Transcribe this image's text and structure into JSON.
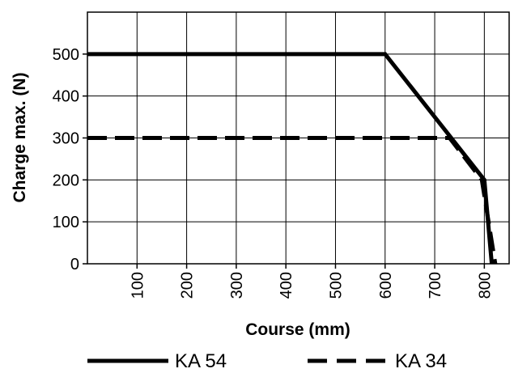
{
  "chart_data": {
    "type": "line",
    "xlabel": "Course (mm)",
    "ylabel": "Charge max. (N)",
    "xlim": [
      0,
      850
    ],
    "ylim": [
      0,
      600
    ],
    "xticks": [
      100,
      200,
      300,
      400,
      500,
      600,
      700,
      800
    ],
    "yticks": [
      0,
      100,
      200,
      300,
      400,
      500
    ],
    "grid": true,
    "legend_position": "bottom",
    "series": [
      {
        "name": "KA 54",
        "style": "solid",
        "color": "#000000",
        "x": [
          0,
          600,
          800,
          815
        ],
        "y": [
          500,
          500,
          200,
          0
        ]
      },
      {
        "name": "KA 34",
        "style": "dashed",
        "color": "#000000",
        "x": [
          0,
          730,
          795,
          822
        ],
        "y": [
          300,
          300,
          200,
          0
        ]
      }
    ]
  }
}
